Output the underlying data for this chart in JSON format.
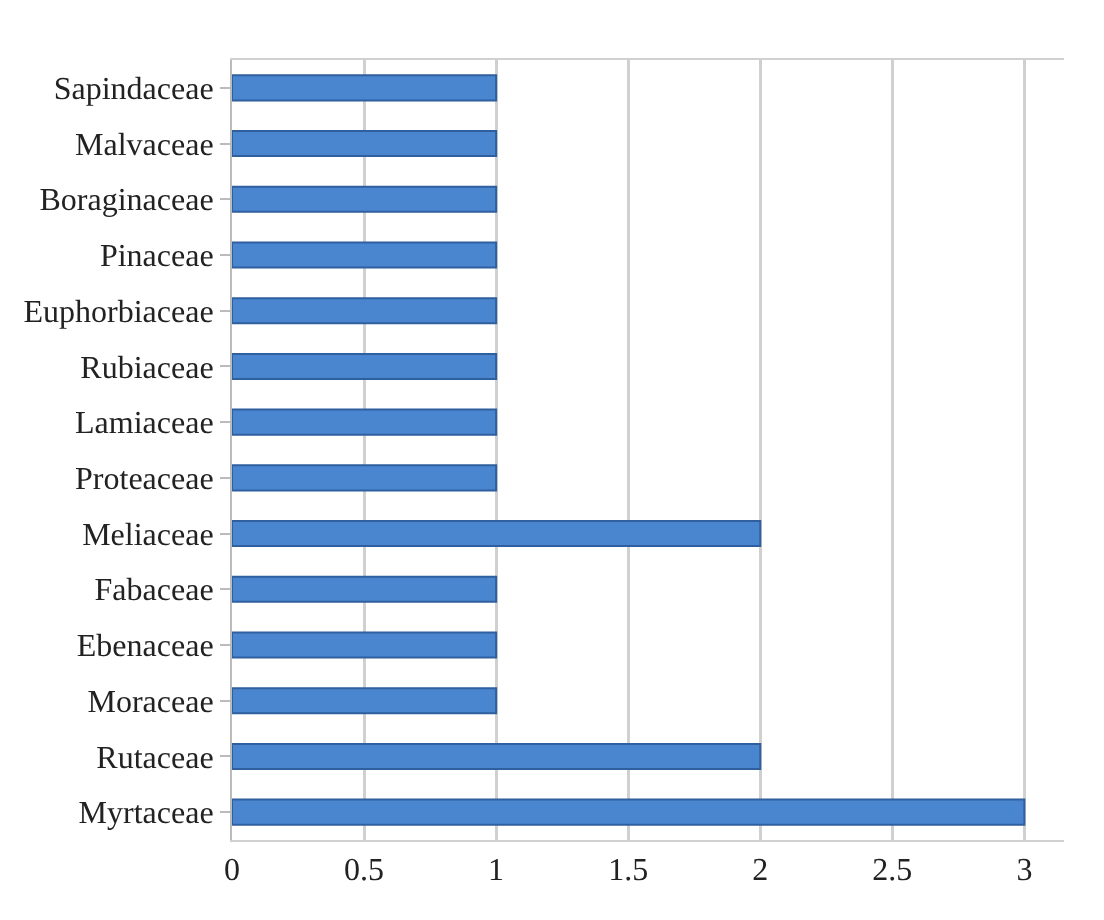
{
  "chart_data": {
    "type": "bar",
    "orientation": "horizontal",
    "categories": [
      "Sapindaceae",
      "Malvaceae",
      "Boraginaceae",
      "Pinaceae",
      "Euphorbiaceae",
      "Rubiaceae",
      "Lamiaceae",
      "Proteaceae",
      "Meliaceae",
      "Fabaceae",
      "Ebenaceae",
      "Moraceae",
      "Rutaceae",
      "Myrtaceae"
    ],
    "values": [
      1,
      1,
      1,
      1,
      1,
      1,
      1,
      1,
      2,
      1,
      1,
      1,
      2,
      3
    ],
    "color": "#4a86d0",
    "xlim": [
      0,
      3.15
    ],
    "xticks": [
      0,
      0.5,
      1,
      1.5,
      2,
      2.5,
      3
    ],
    "grid": "x"
  }
}
